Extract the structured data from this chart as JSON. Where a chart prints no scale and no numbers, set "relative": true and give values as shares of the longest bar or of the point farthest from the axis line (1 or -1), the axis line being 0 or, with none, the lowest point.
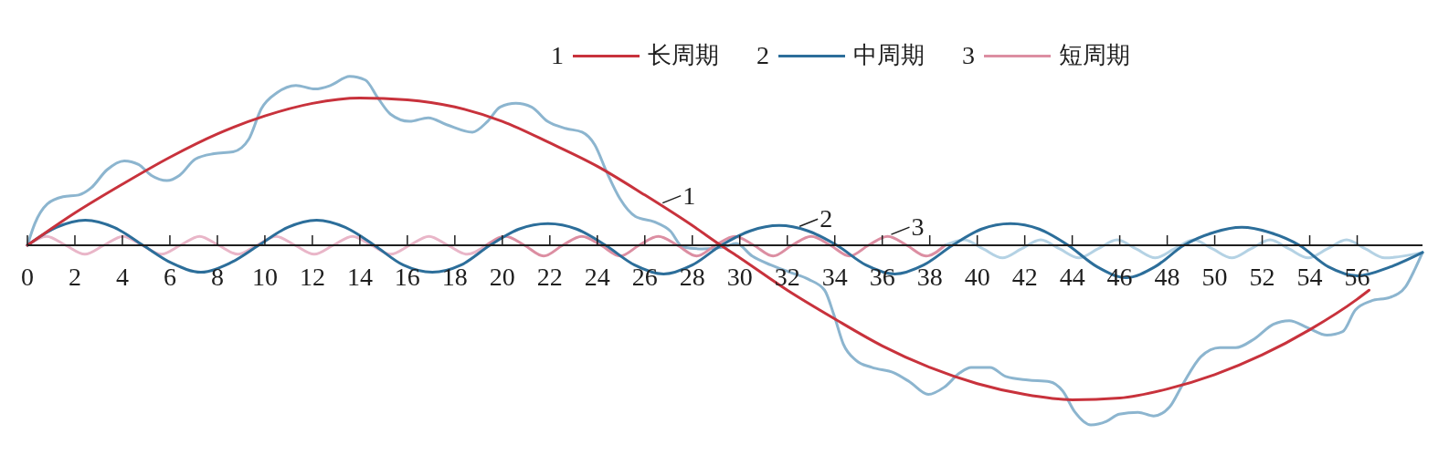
{
  "chart_data": {
    "type": "line",
    "relative": true,
    "legend": "top",
    "annotations": [
      "1",
      "2",
      "3",
      {
        "text": "1",
        "x": 26.67,
        "y": 0.22
      },
      {
        "text": "2",
        "x": 32.44,
        "y": 0.09
      },
      {
        "text": "3",
        "x": 36.3,
        "y": 0.045
      }
    ],
    "xlim": [
      0,
      58.75
    ],
    "xticks": [
      0,
      2,
      4,
      6,
      8,
      10,
      12,
      14,
      16,
      18,
      20,
      22,
      24,
      26,
      28,
      30,
      32,
      34,
      36,
      38,
      40,
      42,
      44,
      46,
      48,
      50,
      52,
      54,
      56
    ],
    "series": [
      {
        "name": "长周期",
        "color": "#c8323c",
        "x": [
          0,
          2,
          4,
          6,
          8,
          10,
          12,
          14,
          16,
          18,
          20,
          22,
          24,
          26,
          28,
          29.2,
          30,
          32,
          34,
          36,
          38,
          40,
          42,
          44,
          46,
          48,
          50,
          52,
          54,
          56,
          56.5
        ],
        "values": [
          0,
          0.18,
          0.34,
          0.49,
          0.62,
          0.72,
          0.79,
          0.82,
          0.81,
          0.77,
          0.69,
          0.57,
          0.44,
          0.28,
          0.11,
          0,
          -0.07,
          -0.25,
          -0.41,
          -0.56,
          -0.68,
          -0.77,
          -0.83,
          -0.86,
          -0.85,
          -0.8,
          -0.72,
          -0.61,
          -0.47,
          -0.3,
          -0.25
        ]
      },
      {
        "name": "中周期",
        "color": "#2c6e9a",
        "x": [
          0,
          1.22,
          2.44,
          3.65,
          4.87,
          6.09,
          7.31,
          8.52,
          9.74,
          10.96,
          12.18,
          13.39,
          14.61,
          15.83,
          17.05,
          18.26,
          19.48,
          20.7,
          21.92,
          23.13,
          24.35,
          25.57,
          26.79,
          28.0,
          29.22,
          30.44,
          31.66,
          32.87,
          34.09,
          35.31,
          36.53,
          37.74,
          38.96,
          40.18,
          41.4,
          42.61,
          43.83,
          45.05,
          46.27,
          47.48,
          48.7,
          49.92,
          51.14,
          52.35,
          53.57,
          54.79,
          56.01,
          57.4,
          58.75
        ],
        "values": [
          0,
          0.1,
          0.14,
          0.1,
          0,
          -0.1,
          -0.15,
          -0.1,
          0,
          0.1,
          0.14,
          0.1,
          0,
          -0.11,
          -0.15,
          -0.11,
          0,
          0.09,
          0.12,
          0.09,
          0,
          -0.11,
          -0.16,
          -0.11,
          0,
          0.08,
          0.11,
          0.08,
          0,
          -0.11,
          -0.16,
          -0.11,
          0,
          0.09,
          0.12,
          0.09,
          0,
          -0.12,
          -0.18,
          -0.12,
          0,
          0.07,
          0.1,
          0.07,
          0,
          -0.12,
          -0.17,
          -0.12,
          -0.04
        ]
      },
      {
        "name": "短周期",
        "color": "#dc8ea2",
        "x": [
          19.32,
          20.13,
          20.93,
          21.74,
          22.54,
          23.35,
          24.15,
          24.96,
          25.76,
          26.57,
          27.37,
          28.18,
          28.98,
          29.79,
          30.59,
          31.4,
          32.2,
          33.01,
          33.81,
          34.62,
          35.42,
          36.23,
          37.03,
          37.84,
          38.64
        ],
        "values": [
          0,
          0.05,
          0,
          -0.06,
          0,
          0.05,
          0,
          -0.06,
          0,
          0.05,
          0,
          -0.06,
          0,
          0.05,
          0,
          -0.06,
          0,
          0.05,
          0,
          -0.06,
          0,
          0.05,
          0,
          -0.06,
          0
        ]
      },
      {
        "color": "#e9b6c8",
        "x": [
          0,
          0.81,
          1.61,
          2.42,
          3.22,
          4.03,
          4.83,
          5.64,
          6.44,
          7.25,
          8.05,
          8.86,
          9.66,
          10.47,
          11.27,
          12.08,
          12.88,
          13.69,
          14.49,
          15.3,
          16.1,
          16.91,
          17.71,
          18.52,
          19.32
        ],
        "values": [
          0,
          0.05,
          0,
          -0.05,
          0,
          0.05,
          0,
          -0.05,
          0,
          0.05,
          0,
          -0.05,
          0,
          0.05,
          0,
          -0.05,
          0,
          0.05,
          0,
          -0.05,
          0,
          0.05,
          0,
          -0.05,
          0
        ]
      },
      {
        "color": "#b4d2e4",
        "x": [
          38.64,
          39.45,
          40.25,
          41.06,
          41.86,
          42.67,
          43.47,
          44.28,
          45.08,
          45.89,
          46.69,
          47.5,
          48.3,
          49.11,
          49.91,
          50.72,
          51.52,
          52.33,
          53.13,
          53.94,
          54.74,
          55.55,
          56.35,
          57.16,
          58.75
        ],
        "values": [
          0,
          0.03,
          -0.02,
          -0.07,
          -0.02,
          0.03,
          -0.02,
          -0.07,
          -0.02,
          0.03,
          -0.02,
          -0.07,
          -0.02,
          0.03,
          -0.02,
          -0.07,
          -0.02,
          0.03,
          -0.02,
          -0.07,
          -0.02,
          0.03,
          -0.02,
          -0.07,
          -0.04
        ]
      },
      {
        "color": "#8cb5cf",
        "x": [
          0,
          0.31,
          0.84,
          1.5,
          2.16,
          2.69,
          3.35,
          4.08,
          4.68,
          5.21,
          5.88,
          6.41,
          7.07,
          7.86,
          8.66,
          9.32,
          9.85,
          10.52,
          11.31,
          12.11,
          12.77,
          13.57,
          14.23,
          14.76,
          15.29,
          16.09,
          16.88,
          17.68,
          18.74,
          19.38,
          19.91,
          20.57,
          21.23,
          21.9,
          22.69,
          23.36,
          23.89,
          24.42,
          24.95,
          25.61,
          26.41,
          27.07,
          27.6,
          28.4,
          29.32,
          29.85,
          30.52,
          31.31,
          32.11,
          32.9,
          33.57,
          33.97,
          34.36,
          34.89,
          35.56,
          36.49,
          37.15,
          37.94,
          38.61,
          39.27,
          39.74,
          40.54,
          41.2,
          42.13,
          43.06,
          43.59,
          44.12,
          44.78,
          45.44,
          45.97,
          46.77,
          47.43,
          48.1,
          48.63,
          49.42,
          50.22,
          50.88,
          51.68,
          52.47,
          53.14,
          53.93,
          54.73,
          55.39,
          55.92,
          56.58,
          57.38,
          58.04,
          58.44,
          58.75
        ],
        "values": [
          0,
          0.12,
          0.23,
          0.27,
          0.28,
          0.32,
          0.42,
          0.47,
          0.45,
          0.39,
          0.36,
          0.39,
          0.48,
          0.51,
          0.52,
          0.59,
          0.76,
          0.85,
          0.89,
          0.87,
          0.89,
          0.94,
          0.92,
          0.82,
          0.73,
          0.69,
          0.71,
          0.67,
          0.63,
          0.69,
          0.77,
          0.79,
          0.77,
          0.69,
          0.65,
          0.63,
          0.56,
          0.4,
          0.26,
          0.16,
          0.13,
          0.08,
          -0.01,
          -0.02,
          -0.01,
          0.01,
          -0.06,
          -0.11,
          -0.15,
          -0.19,
          -0.25,
          -0.39,
          -0.55,
          -0.64,
          -0.68,
          -0.71,
          -0.76,
          -0.83,
          -0.79,
          -0.71,
          -0.68,
          -0.68,
          -0.73,
          -0.75,
          -0.76,
          -0.81,
          -0.93,
          -1,
          -0.98,
          -0.94,
          -0.93,
          -0.95,
          -0.9,
          -0.78,
          -0.62,
          -0.57,
          -0.57,
          -0.52,
          -0.44,
          -0.42,
          -0.46,
          -0.5,
          -0.48,
          -0.36,
          -0.31,
          -0.29,
          -0.23,
          -0.13,
          -0.04
        ]
      }
    ]
  }
}
